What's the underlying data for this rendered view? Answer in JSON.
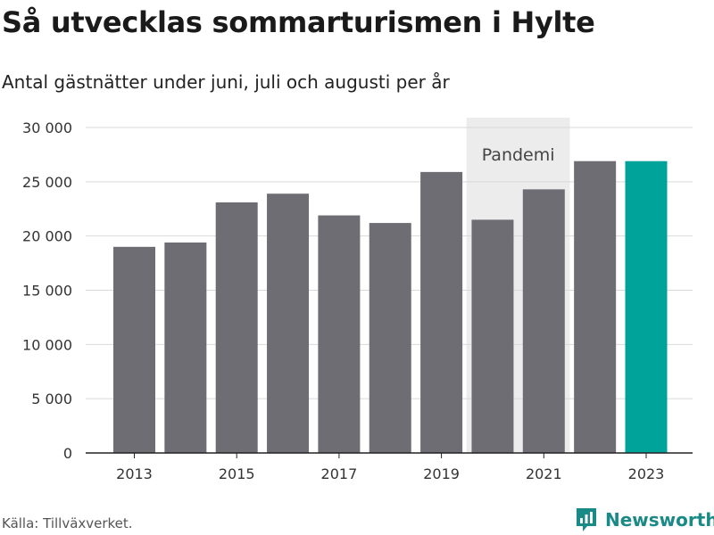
{
  "title": "Så utvecklas sommarturismen i Hylte",
  "subtitle": "Antal gästnätter under juni, juli och augusti per år",
  "source": "Källa: Tillväxverket.",
  "brand": "Newsworthy",
  "colors": {
    "bar": "#6e6d73",
    "highlight": "#00a39a",
    "band": "#ececec",
    "grid": "#d9d9d9",
    "brand": "#1a8a86"
  },
  "chart_data": {
    "type": "bar",
    "categories": [
      "2013",
      "2014",
      "2015",
      "2016",
      "2017",
      "2018",
      "2019",
      "2020",
      "2021",
      "2022",
      "2023"
    ],
    "values": [
      19000,
      19400,
      23100,
      23900,
      21900,
      21200,
      25900,
      21500,
      24300,
      26900,
      26900
    ],
    "highlight_index": 10,
    "ylim": [
      0,
      30000
    ],
    "yticks": [
      0,
      5000,
      10000,
      15000,
      20000,
      25000,
      30000
    ],
    "ytick_labels": [
      "0",
      "5 000",
      "10 000",
      "15 000",
      "20 000",
      "25 000",
      "30 000"
    ],
    "xtick_labels": [
      "2013",
      "2015",
      "2017",
      "2019",
      "2021",
      "2023"
    ],
    "annotation": {
      "label": "Pandemi",
      "from": "2020",
      "to": "2021"
    },
    "grid": true
  }
}
